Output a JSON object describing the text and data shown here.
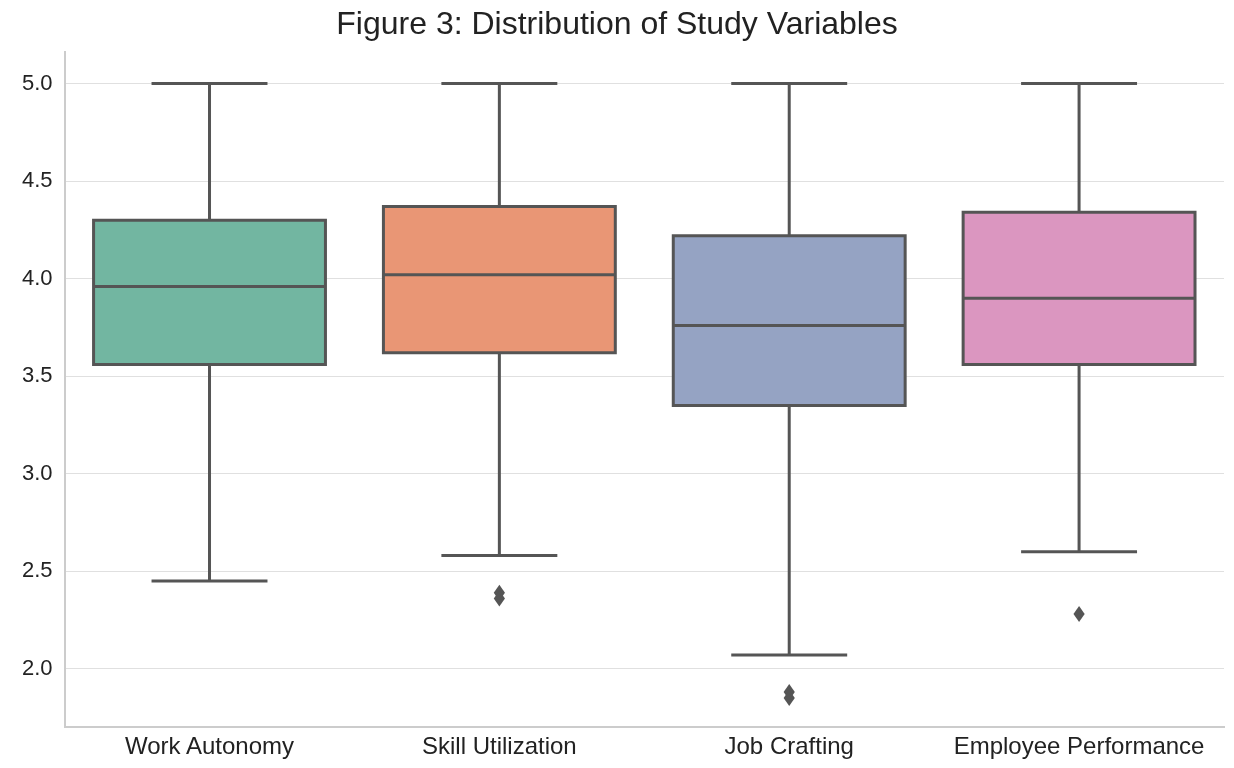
{
  "chart_data": {
    "type": "box",
    "title": "Figure 3: Distribution of Study Variables",
    "categories": [
      "Work Autonomy",
      "Skill Utilization",
      "Job Crafting",
      "Employee Performance"
    ],
    "colors": [
      "#72b6a1",
      "#e99675",
      "#95a3c3",
      "#db96c0"
    ],
    "boxes": [
      {
        "low": 2.45,
        "q1": 3.56,
        "median": 3.96,
        "q3": 4.3,
        "high": 5.0
      },
      {
        "low": 2.58,
        "q1": 3.62,
        "median": 4.02,
        "q3": 4.37,
        "high": 5.0,
        "outliers": [
          2.39,
          2.36
        ]
      },
      {
        "low": 2.07,
        "q1": 3.35,
        "median": 3.76,
        "q3": 4.22,
        "high": 5.0,
        "outliers": [
          1.88,
          1.85
        ]
      },
      {
        "low": 2.6,
        "q1": 3.56,
        "median": 3.9,
        "q3": 4.34,
        "high": 5.0,
        "outliers": [
          2.28
        ]
      }
    ],
    "ylim": [
      1.7,
      5.16
    ],
    "yticks": [
      {
        "value": 2,
        "label": "2.0"
      },
      2.5,
      {
        "value": 3,
        "label": "3.0"
      },
      3.5,
      {
        "value": 4,
        "label": "4.0"
      },
      4.5,
      {
        "value": 5,
        "label": "5.0"
      }
    ],
    "grid": "y"
  }
}
